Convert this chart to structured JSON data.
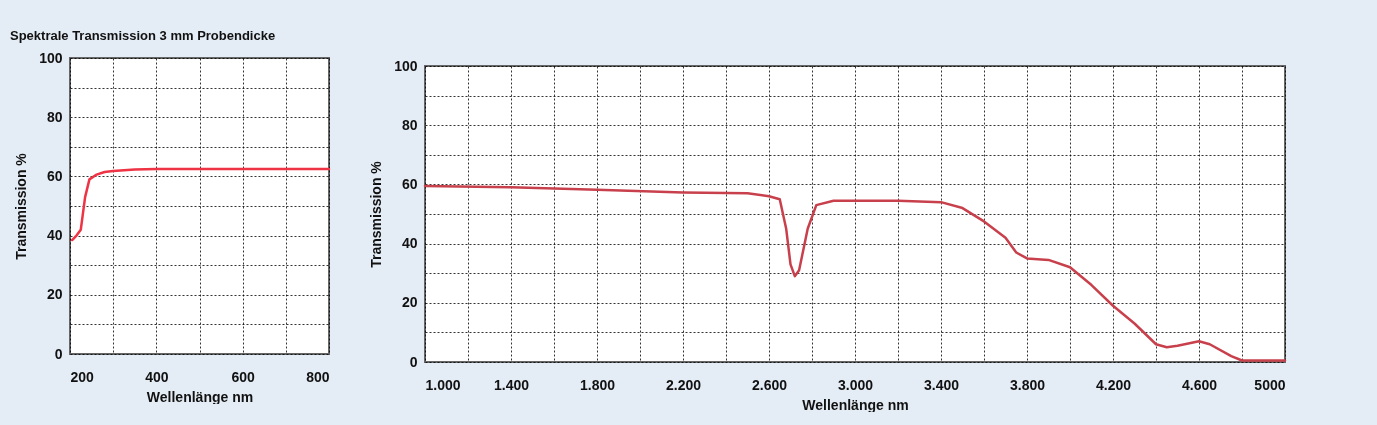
{
  "chart_data": [
    {
      "type": "line",
      "title": "Spektrale Transmission 3 mm Probendicke",
      "xlabel": "Wellenlänge nm",
      "ylabel": "Transmission %",
      "xlim": [
        200,
        800
      ],
      "ylim": [
        0,
        100
      ],
      "xticks": [
        200,
        {
          "value": 300,
          "label": null
        },
        400,
        {
          "value": 500,
          "label": null
        },
        600,
        {
          "value": 700,
          "label": null
        },
        800
      ],
      "yticks": [
        0,
        {
          "value": 10,
          "label": null
        },
        20,
        {
          "value": 30,
          "label": null
        },
        40,
        {
          "value": 50,
          "label": null
        },
        60,
        {
          "value": 70,
          "label": null
        },
        80,
        {
          "value": 90,
          "label": null
        },
        100
      ],
      "grid": true,
      "marker": "none",
      "line_style": "solid",
      "series": [
        {
          "color": "#ee3344",
          "x": [
            205,
            215,
            225,
            235,
            245,
            260,
            280,
            300,
            350,
            400,
            500,
            600,
            700,
            800
          ],
          "values": [
            38.5,
            40,
            42,
            53,
            59,
            60.5,
            61.5,
            61.8,
            62.3,
            62.5,
            62.5,
            62.5,
            62.5,
            62.5
          ]
        }
      ]
    },
    {
      "type": "line",
      "xlabel": "Wellenlänge nm",
      "ylabel": "Transmission %",
      "xlim": [
        1000,
        5000
      ],
      "ylim": [
        0,
        100
      ],
      "xticks": [
        {
          "value": 1000,
          "label": "1.000"
        },
        {
          "value": 1200,
          "label": null
        },
        {
          "value": 1400,
          "label": "1.400"
        },
        {
          "value": 1600,
          "label": null
        },
        {
          "value": 1800,
          "label": "1.800"
        },
        {
          "value": 2000,
          "label": null
        },
        {
          "value": 2200,
          "label": "2.200"
        },
        {
          "value": 2400,
          "label": null
        },
        {
          "value": 2600,
          "label": "2.600"
        },
        {
          "value": 2800,
          "label": null
        },
        {
          "value": 3000,
          "label": "3.000"
        },
        {
          "value": 3200,
          "label": null
        },
        {
          "value": 3400,
          "label": "3.400"
        },
        {
          "value": 3600,
          "label": null
        },
        {
          "value": 3800,
          "label": "3.800"
        },
        {
          "value": 4000,
          "label": null
        },
        {
          "value": 4200,
          "label": "4.200"
        },
        {
          "value": 4400,
          "label": null
        },
        {
          "value": 4600,
          "label": "4.600"
        },
        {
          "value": 4800,
          "label": null
        },
        5000
      ],
      "yticks": [
        0,
        {
          "value": 10,
          "label": null
        },
        20,
        {
          "value": 30,
          "label": null
        },
        40,
        {
          "value": 50,
          "label": null
        },
        60,
        {
          "value": 70,
          "label": null
        },
        80,
        {
          "value": 90,
          "label": null
        },
        100
      ],
      "grid": true,
      "marker": "none",
      "line_style": "solid",
      "series": [
        {
          "color": "#c8404c",
          "x": [
            1000,
            1400,
            1800,
            2200,
            2500,
            2600,
            2650,
            2680,
            2700,
            2720,
            2740,
            2780,
            2820,
            2900,
            3000,
            3200,
            3400,
            3500,
            3600,
            3700,
            3750,
            3800,
            3900,
            4000,
            4100,
            4200,
            4300,
            4400,
            4450,
            4500,
            4600,
            4650,
            4750,
            4800,
            5000
          ],
          "values": [
            59.5,
            59,
            58.2,
            57.3,
            57,
            56,
            55,
            45,
            33,
            29,
            31,
            45,
            53,
            54.5,
            54.5,
            54.5,
            54,
            52,
            47.5,
            42,
            37,
            35,
            34.5,
            32,
            26,
            19,
            13,
            6,
            5,
            5.5,
            7,
            6,
            2,
            0.5,
            0.5
          ]
        }
      ]
    }
  ]
}
